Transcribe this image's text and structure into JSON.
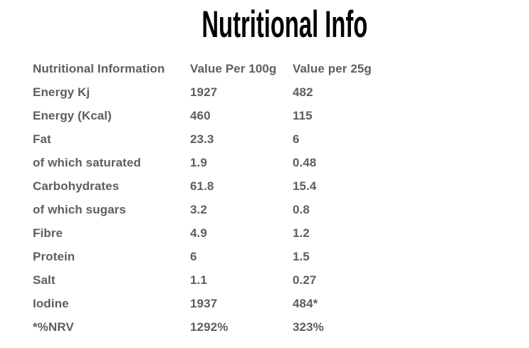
{
  "title": "Nutritional Info",
  "colors": {
    "background": "#ffffff",
    "title": "#000000",
    "text": "#5d5e60"
  },
  "table": {
    "headers": [
      "Nutritional Information",
      "Value Per 100g",
      "Value per 25g"
    ],
    "rows": [
      {
        "label": "Energy Kj",
        "per100g": "1927",
        "per25g": "482"
      },
      {
        "label": "Energy (Kcal)",
        "per100g": "460",
        "per25g": "115"
      },
      {
        "label": "Fat",
        "per100g": "23.3",
        "per25g": "6"
      },
      {
        "label": "of which saturated",
        "per100g": "1.9",
        "per25g": "0.48"
      },
      {
        "label": "Carbohydrates",
        "per100g": "61.8",
        "per25g": "15.4"
      },
      {
        "label": "of which sugars",
        "per100g": "3.2",
        "per25g": "0.8"
      },
      {
        "label": "Fibre",
        "per100g": "4.9",
        "per25g": "1.2"
      },
      {
        "label": "Protein",
        "per100g": "6",
        "per25g": "1.5"
      },
      {
        "label": "Salt",
        "per100g": "1.1",
        "per25g": "0.27"
      },
      {
        "label": "Iodine",
        "per100g": "1937",
        "per25g": "484*"
      },
      {
        "label": "*%NRV",
        "per100g": "1292%",
        "per25g": "323%"
      }
    ]
  }
}
